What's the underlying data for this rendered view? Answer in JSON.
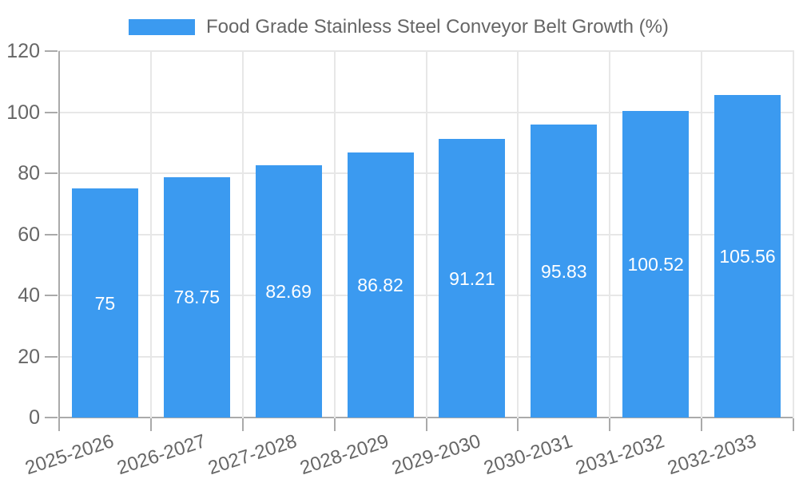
{
  "chart_data": {
    "type": "bar",
    "title": "Food Grade Stainless Steel Conveyor Belt Growth (%)",
    "categories": [
      "2025-2026",
      "2026-2027",
      "2027-2028",
      "2028-2029",
      "2029-2030",
      "2030-2031",
      "2031-2032",
      "2032-2033"
    ],
    "values": [
      75,
      78.75,
      82.69,
      86.82,
      91.21,
      95.83,
      100.52,
      105.56
    ],
    "value_labels": [
      "75",
      "78.75",
      "82.69",
      "86.82",
      "91.21",
      "95.83",
      "100.52",
      "105.56"
    ],
    "xlabel": "",
    "ylabel": "",
    "ylim": [
      0,
      120
    ],
    "yticks": [
      0,
      20,
      40,
      60,
      80,
      100,
      120
    ],
    "grid": true,
    "legend_position": "top",
    "legend_entries": [
      "Food Grade Stainless Steel Conveyor Belt Growth (%)"
    ],
    "value_labels_position": "inside-center",
    "value_labels_color": "#ffffff"
  },
  "colors": {
    "bar": "#3b9af0",
    "grid": "#e7e7e7",
    "axis": "#aaaaaa",
    "tick_text": "#666666",
    "legend_text": "#666666",
    "bar_label_text": "#ffffff",
    "background": "#ffffff"
  }
}
